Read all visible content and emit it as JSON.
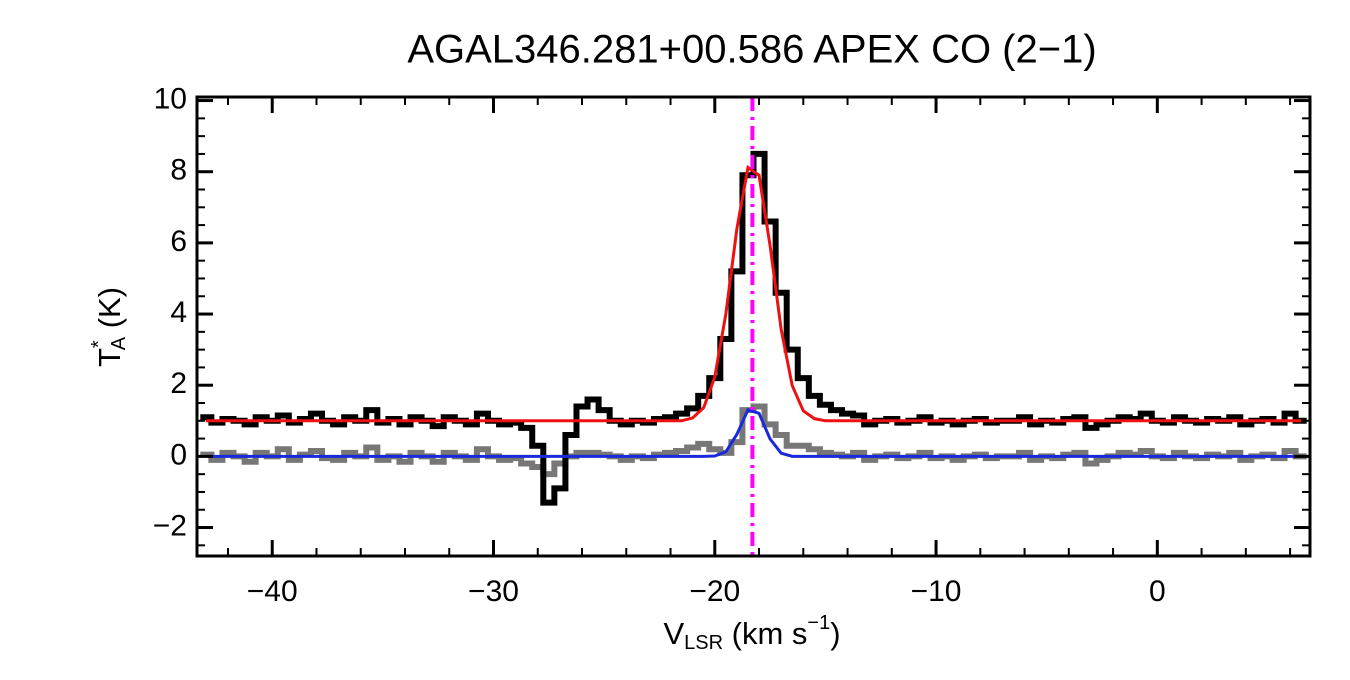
{
  "chart_data": {
    "type": "step-line",
    "title": "AGAL346.281+00.586  APEX CO (2−1)",
    "x_label": {
      "main": "V",
      "sub": "LSR",
      "rest": " (km s",
      "sup": "−1",
      "end": ")"
    },
    "y_label": {
      "main": "T",
      "sup": "*",
      "sub": "A",
      "rest": " (K)"
    },
    "xlim": [
      -43.4,
      6.9
    ],
    "ylim": [
      -2.8,
      10.1
    ],
    "xticks": [
      {
        "value": -40,
        "label": "−40"
      },
      {
        "value": -30,
        "label": "−30"
      },
      {
        "value": -20,
        "label": "−20"
      },
      {
        "value": -10,
        "label": "−10"
      },
      0
    ],
    "yticks": [
      {
        "value": -2,
        "label": "−2"
      },
      0,
      2,
      4,
      6,
      8,
      10
    ],
    "xminor": [
      -42,
      -38,
      -36,
      -34,
      -32,
      -28,
      -26,
      -24,
      -22,
      -18,
      -16,
      -14,
      -12,
      -8,
      -6,
      -4,
      -2,
      2,
      4,
      6
    ],
    "yminor": [
      -2.5,
      -1.5,
      -1,
      -0.5,
      0.5,
      1,
      1.5,
      2.5,
      3,
      3.5,
      4.5,
      5,
      5.5,
      6.5,
      7,
      7.5,
      8.5,
      9,
      9.5
    ],
    "vline": {
      "x": -18.3,
      "color": "#ff00ff"
    },
    "x": [
      -43,
      -42.5,
      -42,
      -41.5,
      -41,
      -40.5,
      -40,
      -39.5,
      -39,
      -38.5,
      -38,
      -37.5,
      -37,
      -36.5,
      -36,
      -35.5,
      -35,
      -34.5,
      -34,
      -33.5,
      -33,
      -32.5,
      -32,
      -31.5,
      -31,
      -30.5,
      -30,
      -29.5,
      -29,
      -28.5,
      -28,
      -27.5,
      -27,
      -26.5,
      -26,
      -25.5,
      -25,
      -24.5,
      -24,
      -23.5,
      -23,
      -22.5,
      -22,
      -21.5,
      -21,
      -20.5,
      -20,
      -19.5,
      -19,
      -18.5,
      -18,
      -17.5,
      -17,
      -16.5,
      -16,
      -15.5,
      -15,
      -14.5,
      -14,
      -13.5,
      -13,
      -12.5,
      -12,
      -11.5,
      -11,
      -10.5,
      -10,
      -9.5,
      -9,
      -8.5,
      -8,
      -7.5,
      -7,
      -6.5,
      -6,
      -5.5,
      -5,
      -4.5,
      -4,
      -3.5,
      -3,
      -2.5,
      -2,
      -1.5,
      -1,
      -0.5,
      0,
      0.5,
      1,
      1.5,
      2,
      2.5,
      3,
      3.5,
      4,
      4.5,
      5,
      5.5,
      6,
      6.5
    ],
    "series": [
      {
        "style": "step",
        "color": "#777777",
        "width": 6,
        "values": [
          0.05,
          -0.1,
          0.1,
          0.0,
          -0.15,
          0.1,
          0.0,
          0.2,
          -0.1,
          0.05,
          0.15,
          -0.05,
          -0.1,
          0.1,
          0.0,
          0.25,
          -0.1,
          0.0,
          -0.15,
          0.1,
          0.0,
          -0.15,
          0.1,
          0.0,
          -0.1,
          0.2,
          0.0,
          -0.1,
          -0.05,
          -0.2,
          -0.3,
          -0.5,
          -0.2,
          0.0,
          0.1,
          0.1,
          0.05,
          0.0,
          -0.1,
          0.0,
          -0.05,
          0.05,
          0.1,
          0.15,
          0.25,
          0.35,
          0.2,
          0.1,
          0.4,
          1.3,
          1.4,
          0.9,
          0.6,
          0.3,
          0.3,
          0.2,
          0.1,
          0.05,
          0.0,
          0.1,
          -0.1,
          0.0,
          0.05,
          -0.05,
          0.0,
          0.1,
          -0.05,
          0.0,
          -0.1,
          0.0,
          0.05,
          -0.05,
          0.0,
          0.0,
          0.1,
          -0.1,
          0.0,
          -0.05,
          0.05,
          0.1,
          -0.2,
          -0.1,
          0.0,
          0.1,
          0.05,
          0.15,
          0.0,
          -0.05,
          0.1,
          0.0,
          -0.05,
          0.05,
          0.0,
          0.1,
          -0.1,
          0.0,
          0.05,
          -0.05,
          0.15,
          0.0
        ]
      },
      {
        "style": "step",
        "color": "#000000",
        "width": 6,
        "values": [
          1.1,
          0.95,
          1.05,
          1.0,
          0.9,
          1.1,
          1.0,
          1.15,
          0.95,
          1.05,
          1.2,
          1.0,
          0.9,
          1.1,
          1.0,
          1.3,
          0.95,
          1.05,
          0.9,
          1.1,
          1.0,
          0.85,
          1.1,
          1.0,
          0.9,
          1.2,
          1.0,
          0.9,
          0.95,
          0.8,
          0.3,
          -1.3,
          -0.9,
          0.6,
          1.4,
          1.6,
          1.3,
          1.0,
          0.9,
          1.0,
          0.95,
          1.05,
          1.1,
          1.2,
          1.35,
          1.7,
          2.2,
          3.3,
          5.2,
          7.9,
          8.5,
          6.6,
          4.6,
          3.0,
          2.2,
          1.7,
          1.45,
          1.3,
          1.2,
          1.15,
          0.9,
          1.0,
          1.05,
          0.95,
          1.0,
          1.1,
          0.95,
          1.0,
          0.9,
          1.0,
          1.05,
          0.95,
          1.0,
          1.0,
          1.1,
          0.9,
          1.0,
          0.95,
          1.05,
          1.1,
          0.8,
          0.9,
          1.0,
          1.1,
          1.05,
          1.2,
          1.0,
          0.95,
          1.1,
          1.0,
          0.95,
          1.05,
          1.0,
          1.1,
          0.9,
          1.0,
          1.05,
          0.95,
          1.2,
          1.0
        ]
      },
      {
        "style": "smooth",
        "color": "#ee1111",
        "width": 3,
        "values": [
          1,
          1,
          1,
          1,
          1,
          1,
          1,
          1,
          1,
          1,
          1,
          1,
          1,
          1,
          1,
          1,
          1,
          1,
          1,
          1,
          1,
          1,
          1,
          1,
          1,
          1,
          1,
          1,
          1,
          1,
          1,
          1,
          1,
          1,
          1,
          1,
          1,
          1,
          1,
          1,
          1,
          1,
          1,
          1,
          1.08,
          1.37,
          2.23,
          4.0,
          6.4,
          8.12,
          7.9,
          5.92,
          3.57,
          1.99,
          1.28,
          1.06,
          1,
          1,
          1,
          1,
          1,
          1,
          1,
          1,
          1,
          1,
          1,
          1,
          1,
          1,
          1,
          1,
          1,
          1,
          1,
          1,
          1,
          1,
          1,
          1,
          1,
          1,
          1,
          1,
          1,
          1,
          1,
          1,
          1,
          1,
          1,
          1,
          1,
          1,
          1,
          1,
          1,
          1,
          1,
          1
        ]
      },
      {
        "style": "smooth",
        "color": "#1a2adb",
        "width": 3,
        "values": [
          0,
          0,
          0,
          0,
          0,
          0,
          0,
          0,
          0,
          0,
          0,
          0,
          0,
          0,
          0,
          0,
          0,
          0,
          0,
          0,
          0,
          0,
          0,
          0,
          0,
          0,
          0,
          0,
          0,
          0,
          0,
          0,
          0,
          0,
          0,
          0,
          0,
          0,
          0,
          0,
          0,
          0,
          0,
          0,
          0,
          0,
          0.01,
          0.13,
          0.62,
          1.31,
          1.21,
          0.49,
          0.09,
          0,
          0,
          0,
          0,
          0,
          0,
          0,
          0,
          0,
          0,
          0,
          0,
          0,
          0,
          0,
          0,
          0,
          0,
          0,
          0,
          0,
          0,
          0,
          0,
          0,
          0,
          0,
          0,
          0,
          0,
          0,
          0,
          0,
          0,
          0,
          0,
          0,
          0,
          0,
          0,
          0,
          0,
          0,
          0,
          0,
          0,
          0
        ]
      }
    ]
  }
}
